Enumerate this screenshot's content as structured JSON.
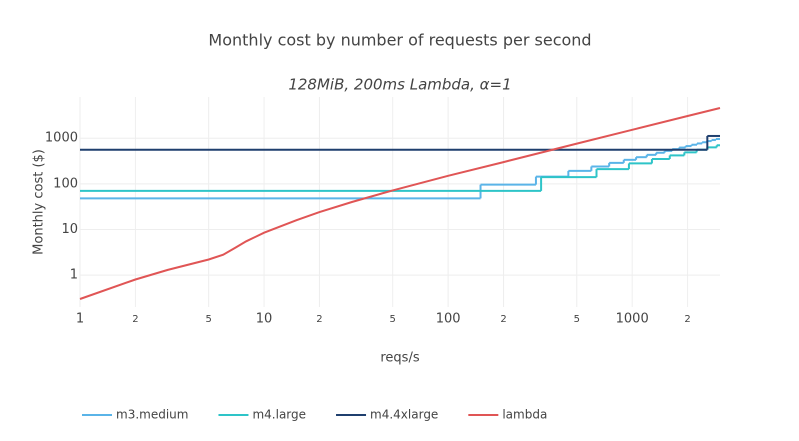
{
  "chart_data": {
    "type": "step-line",
    "title": "Monthly cost by number of requests per second",
    "subtitle": "128MiB, 200ms Lambda, α=1",
    "x_label": "reqs/s",
    "y_label": "Monthly cost ($)",
    "log_x": true,
    "log_y": true,
    "grid": true,
    "legend": "bottom-left",
    "xlim": [
      1,
      3000
    ],
    "ylim": [
      0.2,
      8000
    ],
    "xticks": [
      1,
      {
        "value": 2,
        "label": "2"
      },
      {
        "value": 5,
        "label": "5"
      },
      10,
      {
        "value": 20,
        "label": "2"
      },
      {
        "value": 50,
        "label": "5"
      },
      100,
      {
        "value": 200,
        "label": "2"
      },
      {
        "value": 500,
        "label": "5"
      },
      1000,
      {
        "value": 2000,
        "label": "2"
      }
    ],
    "yticks": [
      1,
      10,
      100,
      1000
    ],
    "series": [
      {
        "name": "m3.medium",
        "color": "#5ab4e8",
        "step": true,
        "x": [
          1,
          150,
          300,
          450,
          600,
          750,
          900,
          1050,
          1200,
          1350,
          1500,
          1650,
          1800,
          1950,
          2100,
          2250,
          2400,
          2550,
          2700,
          2850
        ],
        "values": [
          48,
          96,
          144,
          192,
          240,
          288,
          336,
          384,
          432,
          480,
          528,
          576,
          624,
          672,
          720,
          768,
          816,
          864,
          912,
          960
        ]
      },
      {
        "name": "m4.large",
        "color": "#2ec4c8",
        "step": true,
        "x": [
          1,
          320,
          640,
          960,
          1280,
          1600,
          1920,
          2240,
          2560,
          2880
        ],
        "values": [
          70,
          140,
          210,
          280,
          350,
          420,
          490,
          560,
          630,
          700
        ]
      },
      {
        "name": "m4.4xlarge",
        "color": "#1f3f6e",
        "step": true,
        "x": [
          1,
          2560
        ],
        "values": [
          560,
          1120
        ]
      },
      {
        "name": "lambda",
        "color": "#e05555",
        "step": false,
        "x": [
          1,
          2,
          3,
          5,
          6,
          7,
          8,
          10,
          15,
          20,
          30,
          50,
          100,
          200,
          500,
          1000,
          2000,
          3000
        ],
        "values": [
          0.3,
          0.8,
          1.3,
          2.2,
          2.8,
          4,
          5.5,
          8.5,
          16,
          24,
          40,
          72,
          150,
          300,
          760,
          1530,
          3060,
          4600
        ]
      }
    ]
  }
}
